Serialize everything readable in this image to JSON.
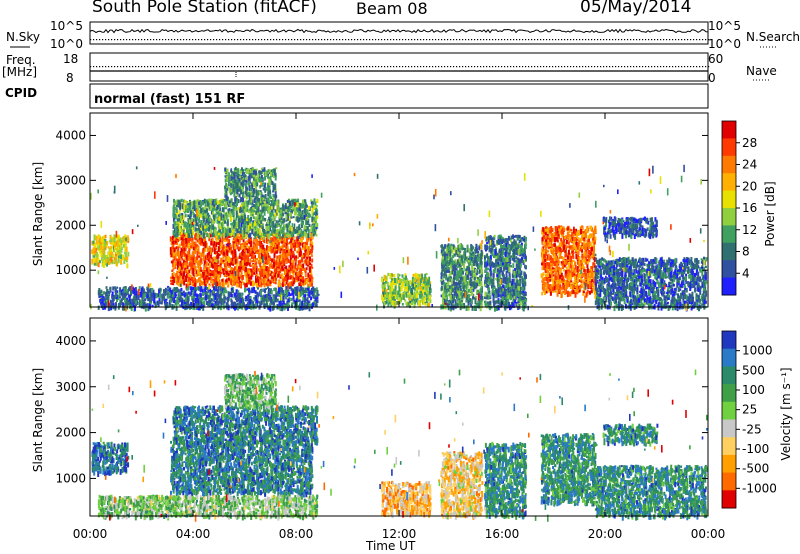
{
  "header": {
    "station": "South Pole Station (fitACF)",
    "beam": "Beam 08",
    "date": "05/May/2014"
  },
  "top_panels": {
    "nsky_label": "N.Sky",
    "nsky_ticks": [
      "10^5",
      "10^0"
    ],
    "nsearch_label": "N.Search",
    "nsearch_ticks": [
      "10^5",
      "10^0"
    ],
    "freq_label": "Freq.",
    "freq_unit": "[MHz]",
    "freq_ticks": [
      "18",
      "8"
    ],
    "nave_label": "Nave",
    "nave_ticks": [
      "60",
      "0"
    ],
    "cpid_label": "CPID",
    "cpid_value": "normal (fast) 151 RF"
  },
  "chart_data": [
    {
      "type": "heatmap",
      "panel": "power",
      "ylabel": "Slant Range [km]",
      "xlabel": "",
      "x_ticks": [
        "00:00",
        "04:00",
        "08:00",
        "12:00",
        "16:00",
        "20:00",
        "00:00"
      ],
      "xlim": [
        0,
        24
      ],
      "ylim": [
        180,
        4500
      ],
      "y_ticks": [
        1000,
        2000,
        3000,
        4000
      ],
      "colorbar": {
        "label": "Power [dB]",
        "ticks": [
          "28",
          "24",
          "20",
          "16",
          "12",
          "8",
          "4"
        ],
        "colors": [
          "#e00000",
          "#ff3a00",
          "#ff7a00",
          "#ffb000",
          "#e8e000",
          "#90d040",
          "#40a060",
          "#307070",
          "#3050a0",
          "#2020ff"
        ]
      },
      "echo_regions": [
        {
          "t0": 0.05,
          "t1": 1.45,
          "r0": 1150,
          "r1": 1800,
          "level": 0.55
        },
        {
          "t0": 3.1,
          "t1": 8.6,
          "r0": 700,
          "r1": 1850,
          "level": 0.82
        },
        {
          "t0": 3.2,
          "t1": 8.8,
          "r0": 1800,
          "r1": 2600,
          "level": 0.35
        },
        {
          "t0": 5.2,
          "t1": 7.2,
          "r0": 2600,
          "r1": 3300,
          "level": 0.3
        },
        {
          "t0": 0.3,
          "t1": 8.8,
          "r0": 200,
          "r1": 650,
          "level": 0.2
        },
        {
          "t0": 11.3,
          "t1": 13.2,
          "r0": 250,
          "r1": 950,
          "level": 0.45
        },
        {
          "t0": 13.6,
          "t1": 15.2,
          "r0": 200,
          "r1": 1600,
          "level": 0.3
        },
        {
          "t0": 15.3,
          "t1": 16.9,
          "r0": 200,
          "r1": 1800,
          "level": 0.25
        },
        {
          "t0": 17.5,
          "t1": 19.6,
          "r0": 500,
          "r1": 2000,
          "level": 0.78
        },
        {
          "t0": 19.6,
          "t1": 23.9,
          "r0": 200,
          "r1": 1300,
          "level": 0.2
        },
        {
          "t0": 19.9,
          "t1": 22.0,
          "r0": 1800,
          "r1": 2200,
          "level": 0.15
        }
      ]
    },
    {
      "type": "heatmap",
      "panel": "velocity",
      "ylabel": "Slant Range [km]",
      "xlabel": "Time UT",
      "x_ticks": [
        "00:00",
        "04:00",
        "08:00",
        "12:00",
        "16:00",
        "20:00",
        "00:00"
      ],
      "xlim": [
        0,
        24
      ],
      "ylim": [
        180,
        4500
      ],
      "y_ticks": [
        1000,
        2000,
        3000,
        4000
      ],
      "colorbar": {
        "label": "Velocity [m s⁻¹]",
        "ticks": [
          "1000",
          "500",
          "100",
          "25",
          "-25",
          "-100",
          "-500",
          "-1000"
        ],
        "colors": [
          "#2038c0",
          "#2a7ac8",
          "#2a8a6a",
          "#40a048",
          "#70d040",
          "#c8c8c8",
          "#ffd060",
          "#ffa000",
          "#ff6a00",
          "#e00000"
        ]
      },
      "echo_regions": [
        {
          "t0": 0.05,
          "t1": 1.45,
          "r0": 1150,
          "r1": 1800,
          "level": 0.85
        },
        {
          "t0": 3.1,
          "t1": 8.6,
          "r0": 700,
          "r1": 1850,
          "level": 0.8
        },
        {
          "t0": 3.2,
          "t1": 8.8,
          "r0": 1800,
          "r1": 2600,
          "level": 0.8
        },
        {
          "t0": 5.2,
          "t1": 7.2,
          "r0": 2600,
          "r1": 3300,
          "level": 0.6
        },
        {
          "t0": 0.3,
          "t1": 8.8,
          "r0": 200,
          "r1": 650,
          "level": 0.55
        },
        {
          "t0": 11.3,
          "t1": 13.2,
          "r0": 250,
          "r1": 950,
          "level": 0.3
        },
        {
          "t0": 13.6,
          "t1": 15.2,
          "r0": 200,
          "r1": 1600,
          "level": 0.35
        },
        {
          "t0": 15.3,
          "t1": 16.9,
          "r0": 200,
          "r1": 1800,
          "level": 0.75
        },
        {
          "t0": 17.5,
          "t1": 19.6,
          "r0": 500,
          "r1": 2000,
          "level": 0.75
        },
        {
          "t0": 19.6,
          "t1": 23.9,
          "r0": 200,
          "r1": 1300,
          "level": 0.75
        },
        {
          "t0": 19.9,
          "t1": 22.0,
          "r0": 1800,
          "r1": 2200,
          "level": 0.75
        }
      ]
    }
  ]
}
